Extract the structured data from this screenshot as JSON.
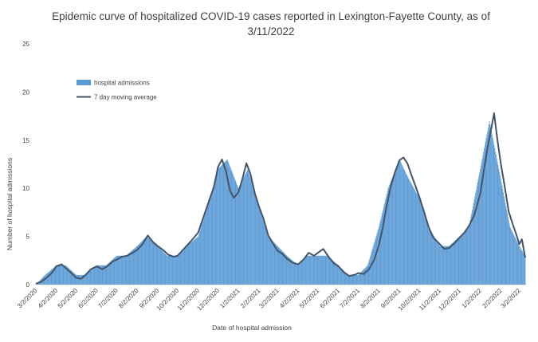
{
  "chart_data": {
    "type": "bar",
    "title": "Epidemic curve of hospitalized COVID-19 cases reported in Lexington-Fayette County, as of 3/11/2022",
    "title_lines": [
      "Epidemic curve of hospitalized COVID-19 cases reported in Lexington-Fayette County, as of",
      "3/11/2022"
    ],
    "xlabel": "Date of hospital admission",
    "ylabel": "Number of hospital admissions",
    "ylim": [
      0,
      25
    ],
    "yticks": [
      0,
      5,
      10,
      15,
      20,
      25
    ],
    "xlim": [
      "2020-03-02",
      "2022-03-11"
    ],
    "xticks": [
      "3/2/2020",
      "4/2/2020",
      "5/2/2020",
      "6/2/2020",
      "7/2/2020",
      "8/2/2020",
      "9/2/2020",
      "10/2/2020",
      "11/2/2020",
      "12/2/2020",
      "1/2/2021",
      "2/2/2021",
      "3/2/2021",
      "4/2/2021",
      "5/2/2021",
      "6/2/2021",
      "7/2/2021",
      "8/2/2021",
      "9/2/2021",
      "10/2/2021",
      "11/2/2021",
      "12/2/2021",
      "1/2/2022",
      "2/2/2022",
      "3/2/2022"
    ],
    "grid": false,
    "legend_position": "top-left",
    "series": [
      {
        "name": "hospital admissions",
        "type": "bar",
        "color": "#5b9bd5",
        "points": [
          [
            "2020-03-02",
            0
          ],
          [
            "2020-03-16",
            1
          ],
          [
            "2020-04-02",
            2
          ],
          [
            "2020-04-16",
            2
          ],
          [
            "2020-05-02",
            1
          ],
          [
            "2020-05-16",
            1
          ],
          [
            "2020-06-02",
            2
          ],
          [
            "2020-06-16",
            2
          ],
          [
            "2020-07-02",
            3
          ],
          [
            "2020-07-16",
            3
          ],
          [
            "2020-08-02",
            4
          ],
          [
            "2020-08-16",
            5
          ],
          [
            "2020-09-02",
            4
          ],
          [
            "2020-09-16",
            3
          ],
          [
            "2020-10-02",
            3
          ],
          [
            "2020-10-16",
            4
          ],
          [
            "2020-11-02",
            5
          ],
          [
            "2020-11-16",
            8
          ],
          [
            "2020-12-02",
            12
          ],
          [
            "2020-12-16",
            13
          ],
          [
            "2021-01-02",
            10
          ],
          [
            "2021-01-16",
            12
          ],
          [
            "2021-02-02",
            8
          ],
          [
            "2021-02-16",
            5
          ],
          [
            "2021-03-02",
            4
          ],
          [
            "2021-03-16",
            3
          ],
          [
            "2021-04-02",
            2
          ],
          [
            "2021-04-16",
            3
          ],
          [
            "2021-05-02",
            3
          ],
          [
            "2021-05-16",
            3
          ],
          [
            "2021-06-02",
            2
          ],
          [
            "2021-06-16",
            1
          ],
          [
            "2021-07-02",
            1
          ],
          [
            "2021-07-16",
            2
          ],
          [
            "2021-08-02",
            6
          ],
          [
            "2021-08-16",
            10
          ],
          [
            "2021-09-02",
            13
          ],
          [
            "2021-09-16",
            11
          ],
          [
            "2021-10-02",
            9
          ],
          [
            "2021-10-16",
            6
          ],
          [
            "2021-11-02",
            4
          ],
          [
            "2021-11-16",
            4
          ],
          [
            "2021-12-02",
            5
          ],
          [
            "2021-12-16",
            6
          ],
          [
            "2022-01-02",
            12
          ],
          [
            "2022-01-16",
            17
          ],
          [
            "2022-02-02",
            11
          ],
          [
            "2022-02-16",
            6
          ],
          [
            "2022-03-02",
            4
          ],
          [
            "2022-03-11",
            3
          ]
        ]
      },
      {
        "name": "7 day moving average",
        "type": "line",
        "color": "#44546a",
        "points": [
          [
            "2020-03-02",
            0.1
          ],
          [
            "2020-03-10",
            0.3
          ],
          [
            "2020-03-18",
            0.7
          ],
          [
            "2020-03-26",
            1.2
          ],
          [
            "2020-04-02",
            1.9
          ],
          [
            "2020-04-10",
            2.1
          ],
          [
            "2020-04-18",
            1.6
          ],
          [
            "2020-04-26",
            1.1
          ],
          [
            "2020-05-02",
            0.7
          ],
          [
            "2020-05-09",
            0.6
          ],
          [
            "2020-05-16",
            1.0
          ],
          [
            "2020-05-24",
            1.6
          ],
          [
            "2020-06-02",
            1.9
          ],
          [
            "2020-06-10",
            1.6
          ],
          [
            "2020-06-18",
            1.9
          ],
          [
            "2020-06-26",
            2.4
          ],
          [
            "2020-07-02",
            2.6
          ],
          [
            "2020-07-10",
            2.9
          ],
          [
            "2020-07-18",
            3.0
          ],
          [
            "2020-07-26",
            3.3
          ],
          [
            "2020-08-02",
            3.6
          ],
          [
            "2020-08-10",
            4.2
          ],
          [
            "2020-08-18",
            5.1
          ],
          [
            "2020-08-26",
            4.4
          ],
          [
            "2020-09-02",
            4.0
          ],
          [
            "2020-09-10",
            3.6
          ],
          [
            "2020-09-18",
            3.1
          ],
          [
            "2020-09-26",
            2.9
          ],
          [
            "2020-10-02",
            3.0
          ],
          [
            "2020-10-10",
            3.6
          ],
          [
            "2020-10-18",
            4.2
          ],
          [
            "2020-10-26",
            4.8
          ],
          [
            "2020-11-02",
            5.4
          ],
          [
            "2020-11-10",
            7.0
          ],
          [
            "2020-11-18",
            8.6
          ],
          [
            "2020-11-26",
            10.2
          ],
          [
            "2020-12-02",
            12.2
          ],
          [
            "2020-12-08",
            13.0
          ],
          [
            "2020-12-14",
            11.8
          ],
          [
            "2020-12-20",
            9.8
          ],
          [
            "2020-12-26",
            9.0
          ],
          [
            "2021-01-02",
            9.6
          ],
          [
            "2021-01-08",
            11.0
          ],
          [
            "2021-01-14",
            12.6
          ],
          [
            "2021-01-20",
            11.5
          ],
          [
            "2021-01-27",
            9.4
          ],
          [
            "2021-02-02",
            8.1
          ],
          [
            "2021-02-09",
            6.8
          ],
          [
            "2021-02-16",
            5.1
          ],
          [
            "2021-02-23",
            4.3
          ],
          [
            "2021-03-02",
            3.5
          ],
          [
            "2021-03-09",
            3.2
          ],
          [
            "2021-03-16",
            2.7
          ],
          [
            "2021-03-24",
            2.3
          ],
          [
            "2021-04-02",
            2.1
          ],
          [
            "2021-04-10",
            2.6
          ],
          [
            "2021-04-18",
            3.3
          ],
          [
            "2021-04-26",
            3.0
          ],
          [
            "2021-05-02",
            3.3
          ],
          [
            "2021-05-10",
            3.7
          ],
          [
            "2021-05-18",
            2.9
          ],
          [
            "2021-05-26",
            2.2
          ],
          [
            "2021-06-02",
            1.9
          ],
          [
            "2021-06-10",
            1.3
          ],
          [
            "2021-06-18",
            0.9
          ],
          [
            "2021-06-26",
            1.0
          ],
          [
            "2021-07-02",
            1.2
          ],
          [
            "2021-07-10",
            1.1
          ],
          [
            "2021-07-18",
            1.6
          ],
          [
            "2021-07-26",
            2.6
          ],
          [
            "2021-08-02",
            4.1
          ],
          [
            "2021-08-08",
            6.0
          ],
          [
            "2021-08-14",
            8.3
          ],
          [
            "2021-08-20",
            10.2
          ],
          [
            "2021-08-26",
            11.6
          ],
          [
            "2021-09-02",
            12.9
          ],
          [
            "2021-09-08",
            13.2
          ],
          [
            "2021-09-14",
            12.6
          ],
          [
            "2021-09-20",
            11.4
          ],
          [
            "2021-09-27",
            10.1
          ],
          [
            "2021-10-02",
            9.1
          ],
          [
            "2021-10-09",
            7.6
          ],
          [
            "2021-10-16",
            6.0
          ],
          [
            "2021-10-23",
            4.9
          ],
          [
            "2021-11-02",
            4.2
          ],
          [
            "2021-11-09",
            3.7
          ],
          [
            "2021-11-16",
            3.8
          ],
          [
            "2021-11-24",
            4.3
          ],
          [
            "2021-12-02",
            4.9
          ],
          [
            "2021-12-09",
            5.4
          ],
          [
            "2021-12-16",
            6.1
          ],
          [
            "2021-12-24",
            7.2
          ],
          [
            "2022-01-02",
            9.4
          ],
          [
            "2022-01-08",
            12.1
          ],
          [
            "2022-01-14",
            14.6
          ],
          [
            "2022-01-19",
            16.3
          ],
          [
            "2022-01-23",
            17.8
          ],
          [
            "2022-01-28",
            15.0
          ],
          [
            "2022-02-02",
            12.6
          ],
          [
            "2022-02-08",
            10.2
          ],
          [
            "2022-02-14",
            7.6
          ],
          [
            "2022-02-20",
            6.3
          ],
          [
            "2022-02-26",
            5.1
          ],
          [
            "2022-03-02",
            4.2
          ],
          [
            "2022-03-06",
            4.7
          ],
          [
            "2022-03-11",
            2.8
          ]
        ]
      }
    ]
  }
}
